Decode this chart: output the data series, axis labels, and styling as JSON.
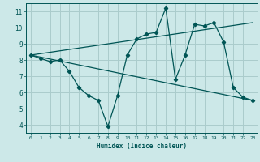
{
  "xlabel": "Humidex (Indice chaleur)",
  "bg_color": "#cce8e8",
  "grid_color": "#aacccc",
  "line_color": "#005555",
  "marker_color": "#005555",
  "xlim": [
    -0.5,
    23.5
  ],
  "ylim": [
    3.5,
    11.5
  ],
  "xticks": [
    0,
    1,
    2,
    3,
    4,
    5,
    6,
    7,
    8,
    9,
    10,
    11,
    12,
    13,
    14,
    15,
    16,
    17,
    18,
    19,
    20,
    21,
    22,
    23
  ],
  "yticks": [
    4,
    5,
    6,
    7,
    8,
    9,
    10,
    11
  ],
  "line1_x": [
    0,
    1,
    2,
    3,
    4,
    5,
    6,
    7,
    8,
    9,
    10,
    11,
    12,
    13,
    14,
    15,
    16,
    17,
    18,
    19,
    20,
    21,
    22,
    23
  ],
  "line1_y": [
    8.3,
    8.1,
    7.9,
    8.0,
    7.3,
    6.3,
    5.8,
    5.5,
    3.9,
    5.8,
    8.3,
    9.3,
    9.6,
    9.7,
    11.2,
    6.8,
    8.3,
    10.2,
    10.1,
    10.3,
    9.1,
    6.3,
    5.7,
    5.5
  ],
  "line2_x": [
    0,
    23
  ],
  "line2_y": [
    8.3,
    5.5
  ],
  "line3_x": [
    0,
    23
  ],
  "line3_y": [
    8.3,
    10.3
  ]
}
